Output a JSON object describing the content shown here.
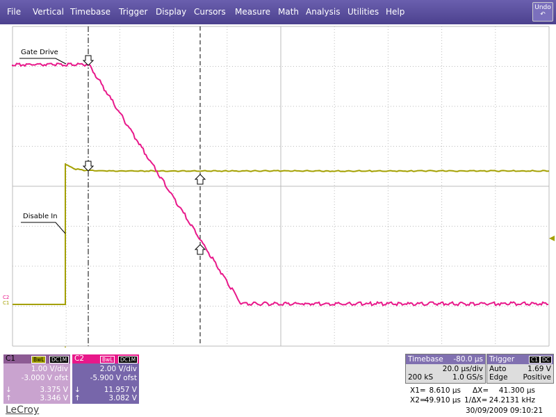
{
  "menu": [
    "File",
    "Vertical",
    "Timebase",
    "Trigger",
    "Display",
    "Cursors",
    "Measure",
    "Math",
    "Analysis",
    "Utilities",
    "Help"
  ],
  "undo": "Undo",
  "annotations": [
    "Gate Drive",
    "Disable In"
  ],
  "markers": [
    "C2",
    "C1"
  ],
  "channels": [
    {
      "name": "C1",
      "tags": [
        "BwL",
        "DC1M"
      ],
      "vdiv": "1.00 V/div",
      "offset": "-3.000 V ofst",
      "cursor1": "3.375 V",
      "cursor2": "3.346 V"
    },
    {
      "name": "C2",
      "tags": [
        "BwL",
        "DC1M"
      ],
      "vdiv": "2.00 V/div",
      "offset": "-5.900 V ofst",
      "cursor1": "11.957 V",
      "cursor2": "3.082 V"
    }
  ],
  "timebase": {
    "label": "Timebase",
    "delay": "-80.0 µs",
    "per_div": "20.0 µs/div",
    "samples": "200 kS",
    "rate": "1.0 GS/s"
  },
  "trigger": {
    "label": "Trigger",
    "channel": "C1",
    "coupling": "DC",
    "mode": "Auto",
    "level": "1.69 V",
    "type": "Edge",
    "slope": "Positive"
  },
  "cursors": {
    "x1_label": "X1=",
    "x1": "8.610 µs",
    "dx_label": "ΔX=",
    "dx": "41.300 µs",
    "x2_label": "X2=",
    "x2": "49.910 µs",
    "inv_label": "1/ΔX=",
    "inv": "24.2131 kHz"
  },
  "timestamp": "30/09/2009 09:10:21",
  "brand": "LeCroy"
}
